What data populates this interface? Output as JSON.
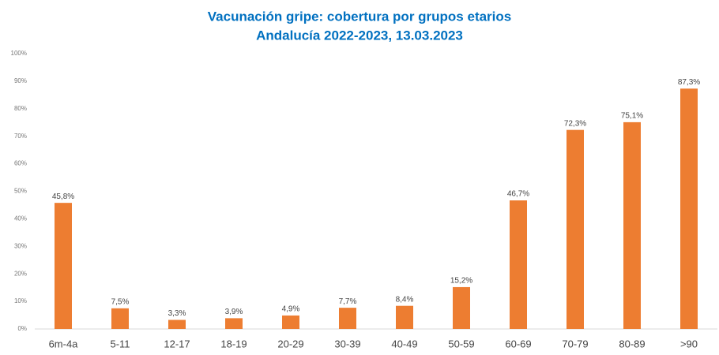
{
  "chart_data": {
    "type": "bar",
    "title": "Vacunación gripe: cobertura por grupos etarios",
    "subtitle": "Andalucía 2022-2023, 13.03.2023",
    "categories": [
      "6m-4a",
      "5-11",
      "12-17",
      "18-19",
      "20-29",
      "30-39",
      "40-49",
      "50-59",
      "60-69",
      "70-79",
      "80-89",
      ">90"
    ],
    "values": [
      45.8,
      7.5,
      3.3,
      3.9,
      4.9,
      7.7,
      8.4,
      15.2,
      46.7,
      72.3,
      75.1,
      87.3
    ],
    "value_labels": [
      "45,8%",
      "7,5%",
      "3,3%",
      "3,9%",
      "4,9%",
      "7,7%",
      "8,4%",
      "15,2%",
      "46,7%",
      "72,3%",
      "75,1%",
      "87,3%"
    ],
    "color": "#ed7d31",
    "ylim": [
      0,
      100
    ],
    "yticks": [
      {
        "value": 0,
        "label": "0%"
      },
      {
        "value": 10,
        "label": "10%"
      },
      {
        "value": 20,
        "label": "20%"
      },
      {
        "value": 30,
        "label": "30%"
      },
      {
        "value": 40,
        "label": "40%"
      },
      {
        "value": 50,
        "label": "50%"
      },
      {
        "value": 60,
        "label": "60%"
      },
      {
        "value": 70,
        "label": "70%"
      },
      {
        "value": 80,
        "label": "80%"
      },
      {
        "value": 90,
        "label": "90%"
      },
      {
        "value": 100,
        "label": "100%"
      }
    ],
    "grid": false
  }
}
